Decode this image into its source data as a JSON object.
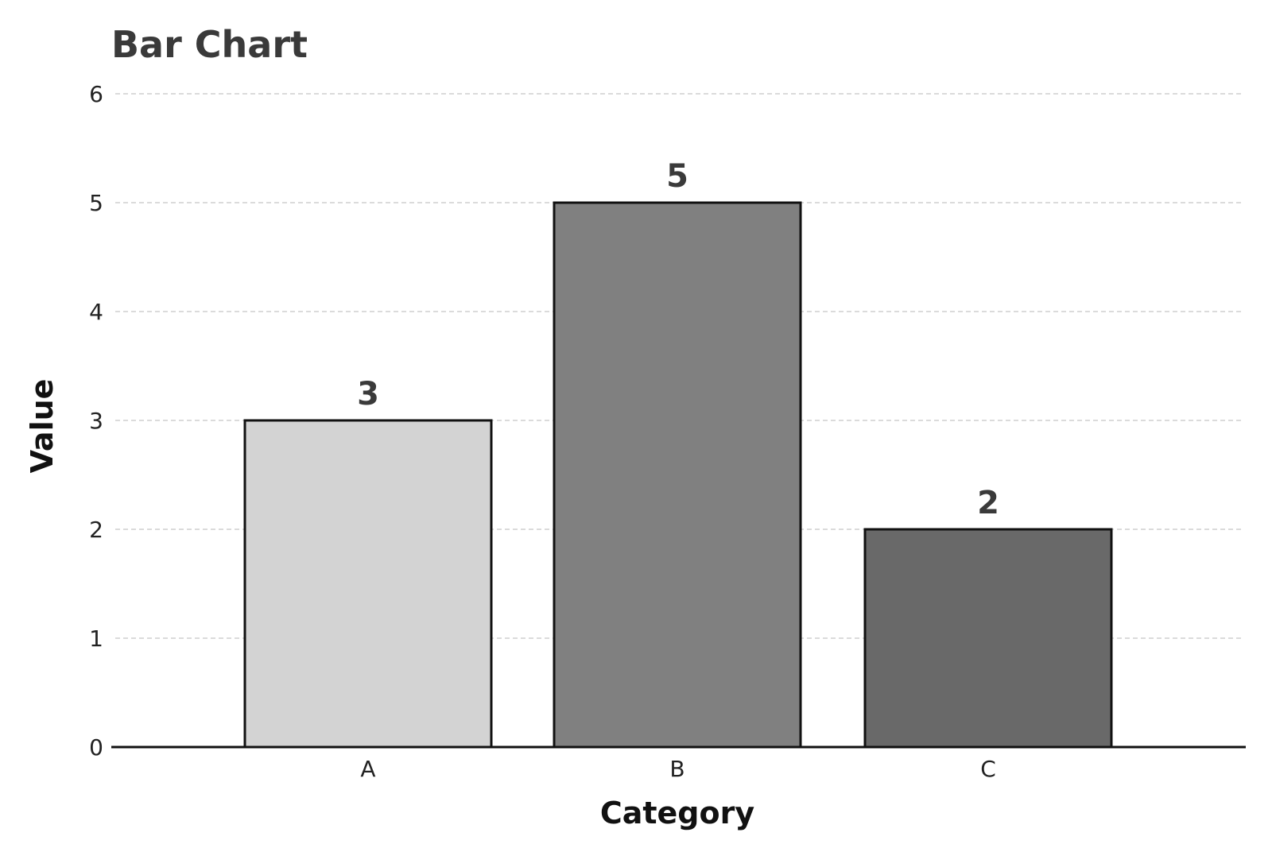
{
  "chart_data": {
    "type": "bar",
    "title": "Bar Chart",
    "xlabel": "Category",
    "ylabel": "Value",
    "categories": [
      "A",
      "B",
      "C"
    ],
    "values": [
      3,
      5,
      2
    ],
    "data_labels": [
      "3",
      "5",
      "2"
    ],
    "bar_colors": [
      "#d3d3d3",
      "#808080",
      "#696969"
    ],
    "ylim": [
      0,
      6
    ],
    "yticks": [
      0,
      1,
      2,
      3,
      4,
      5,
      6
    ],
    "ytick_labels": [
      "0",
      "1",
      "2",
      "3",
      "4",
      "5",
      "6"
    ],
    "grid": true,
    "grid_axis": "y",
    "legend": "none"
  }
}
